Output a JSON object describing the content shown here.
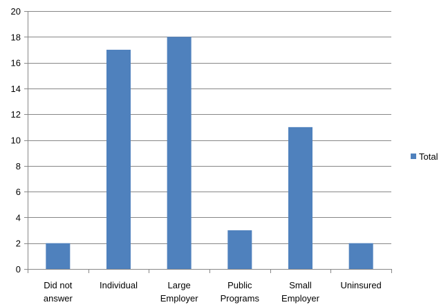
{
  "chart_data": {
    "type": "bar",
    "categories": [
      "Did not answer",
      "Individual",
      "Large Employer",
      "Public Programs",
      "Small Employer",
      "Uninsured"
    ],
    "category_label_lines": [
      [
        "Did not",
        "answer"
      ],
      [
        "Individual"
      ],
      [
        "Large",
        "Employer"
      ],
      [
        "Public",
        "Programs"
      ],
      [
        "Small",
        "Employer"
      ],
      [
        "Uninsured"
      ]
    ],
    "series": [
      {
        "name": "Total",
        "values": [
          2,
          17,
          18,
          3,
          11,
          2
        ]
      }
    ],
    "ylim": [
      0,
      20
    ],
    "yticks": [
      0,
      2,
      4,
      6,
      8,
      10,
      12,
      14,
      16,
      18,
      20
    ],
    "title": "",
    "xlabel": "",
    "ylabel": "",
    "grid": true,
    "legend_position": "right",
    "colors": {
      "bar": "#4f81bd",
      "grid": "#868686",
      "axis": "#868686"
    }
  }
}
